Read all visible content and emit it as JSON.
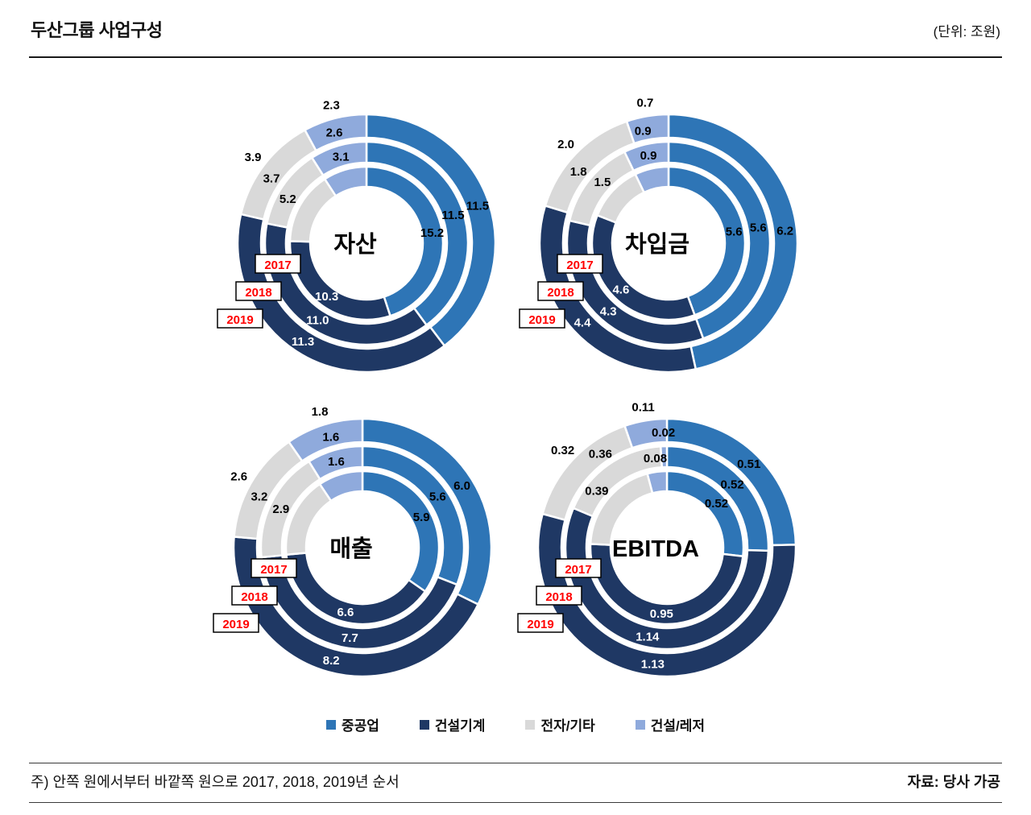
{
  "header": {
    "title": "두산그룹 사업구성",
    "unit": "(단위: 조원)"
  },
  "legend": [
    {
      "label": "중공업",
      "color": "#2E75B6"
    },
    {
      "label": "건설기계",
      "color": "#1F3864"
    },
    {
      "label": "전자/기타",
      "color": "#D9D9D9"
    },
    {
      "label": "건설/레저",
      "color": "#8FAADC"
    }
  ],
  "colors": {
    "year_label": "#FF0000",
    "label_dark": "#000000",
    "label_light": "#FFFFFF"
  },
  "footer": {
    "note": "주) 안쪽 원에서부터 바깥쪽 원으로 2017, 2018, 2019년 순서",
    "source": "자료: 당사 가공"
  },
  "chart_data": [
    {
      "type": "donut",
      "title": "자산",
      "categories": [
        "중공업",
        "건설기계",
        "전자/기타",
        "건설/레저"
      ],
      "series": [
        {
          "name": "2017",
          "ring": "inner",
          "values": [
            15.2,
            10.3,
            5.2,
            3.1
          ],
          "labels": [
            "15.2",
            "10.3",
            "5.2",
            "3.1"
          ]
        },
        {
          "name": "2018",
          "ring": "middle",
          "values": [
            11.5,
            11.0,
            3.7,
            2.6
          ],
          "labels": [
            "11.5",
            "11.0",
            "3.7",
            "2.6"
          ]
        },
        {
          "name": "2019",
          "ring": "outer",
          "values": [
            11.5,
            11.3,
            3.9,
            2.3
          ],
          "labels": [
            "11.5",
            "11.3",
            "3.9",
            "2.3"
          ]
        }
      ]
    },
    {
      "type": "donut",
      "title": "차입금",
      "categories": [
        "중공업",
        "건설기계",
        "전자/기타",
        "건설/레저"
      ],
      "series": [
        {
          "name": "2017",
          "ring": "inner",
          "values": [
            5.6,
            4.6,
            1.5,
            0.9
          ],
          "labels": [
            "5.6",
            "4.6",
            "1.5",
            "0.9"
          ]
        },
        {
          "name": "2018",
          "ring": "middle",
          "values": [
            5.6,
            4.3,
            1.8,
            0.9
          ],
          "labels": [
            "5.6",
            "4.3",
            "1.8",
            "0.9"
          ]
        },
        {
          "name": "2019",
          "ring": "outer",
          "values": [
            6.2,
            4.4,
            2.0,
            0.7
          ],
          "labels": [
            "6.2",
            "4.4",
            "2.0",
            "0.7"
          ]
        }
      ]
    },
    {
      "type": "donut",
      "title": "매출",
      "categories": [
        "중공업",
        "건설기계",
        "전자/기타",
        "건설/레저"
      ],
      "series": [
        {
          "name": "2017",
          "ring": "inner",
          "values": [
            5.9,
            6.6,
            2.9,
            1.6
          ],
          "labels": [
            "5.9",
            "6.6",
            "2.9",
            "1.6"
          ]
        },
        {
          "name": "2018",
          "ring": "middle",
          "values": [
            5.6,
            7.7,
            3.2,
            1.6
          ],
          "labels": [
            "5.6",
            "7.7",
            "3.2",
            "1.6"
          ]
        },
        {
          "name": "2019",
          "ring": "outer",
          "values": [
            6.0,
            8.2,
            2.6,
            1.8
          ],
          "labels": [
            "6.0",
            "8.2",
            "2.6",
            "1.8"
          ]
        }
      ]
    },
    {
      "type": "donut",
      "title": "EBITDA",
      "categories": [
        "중공업",
        "건설기계",
        "전자/기타",
        "건설/레저"
      ],
      "series": [
        {
          "name": "2017",
          "ring": "inner",
          "values": [
            0.52,
            0.95,
            0.39,
            0.08
          ],
          "labels": [
            "0.52",
            "0.95",
            "0.39",
            "0.08"
          ]
        },
        {
          "name": "2018",
          "ring": "middle",
          "values": [
            0.52,
            1.14,
            0.36,
            0.02
          ],
          "labels": [
            "0.52",
            "1.14",
            "0.36",
            "0.02"
          ]
        },
        {
          "name": "2019",
          "ring": "outer",
          "values": [
            0.51,
            1.13,
            0.32,
            0.11
          ],
          "labels": [
            "0.51",
            "1.13",
            "0.32",
            "0.11"
          ]
        }
      ]
    }
  ]
}
